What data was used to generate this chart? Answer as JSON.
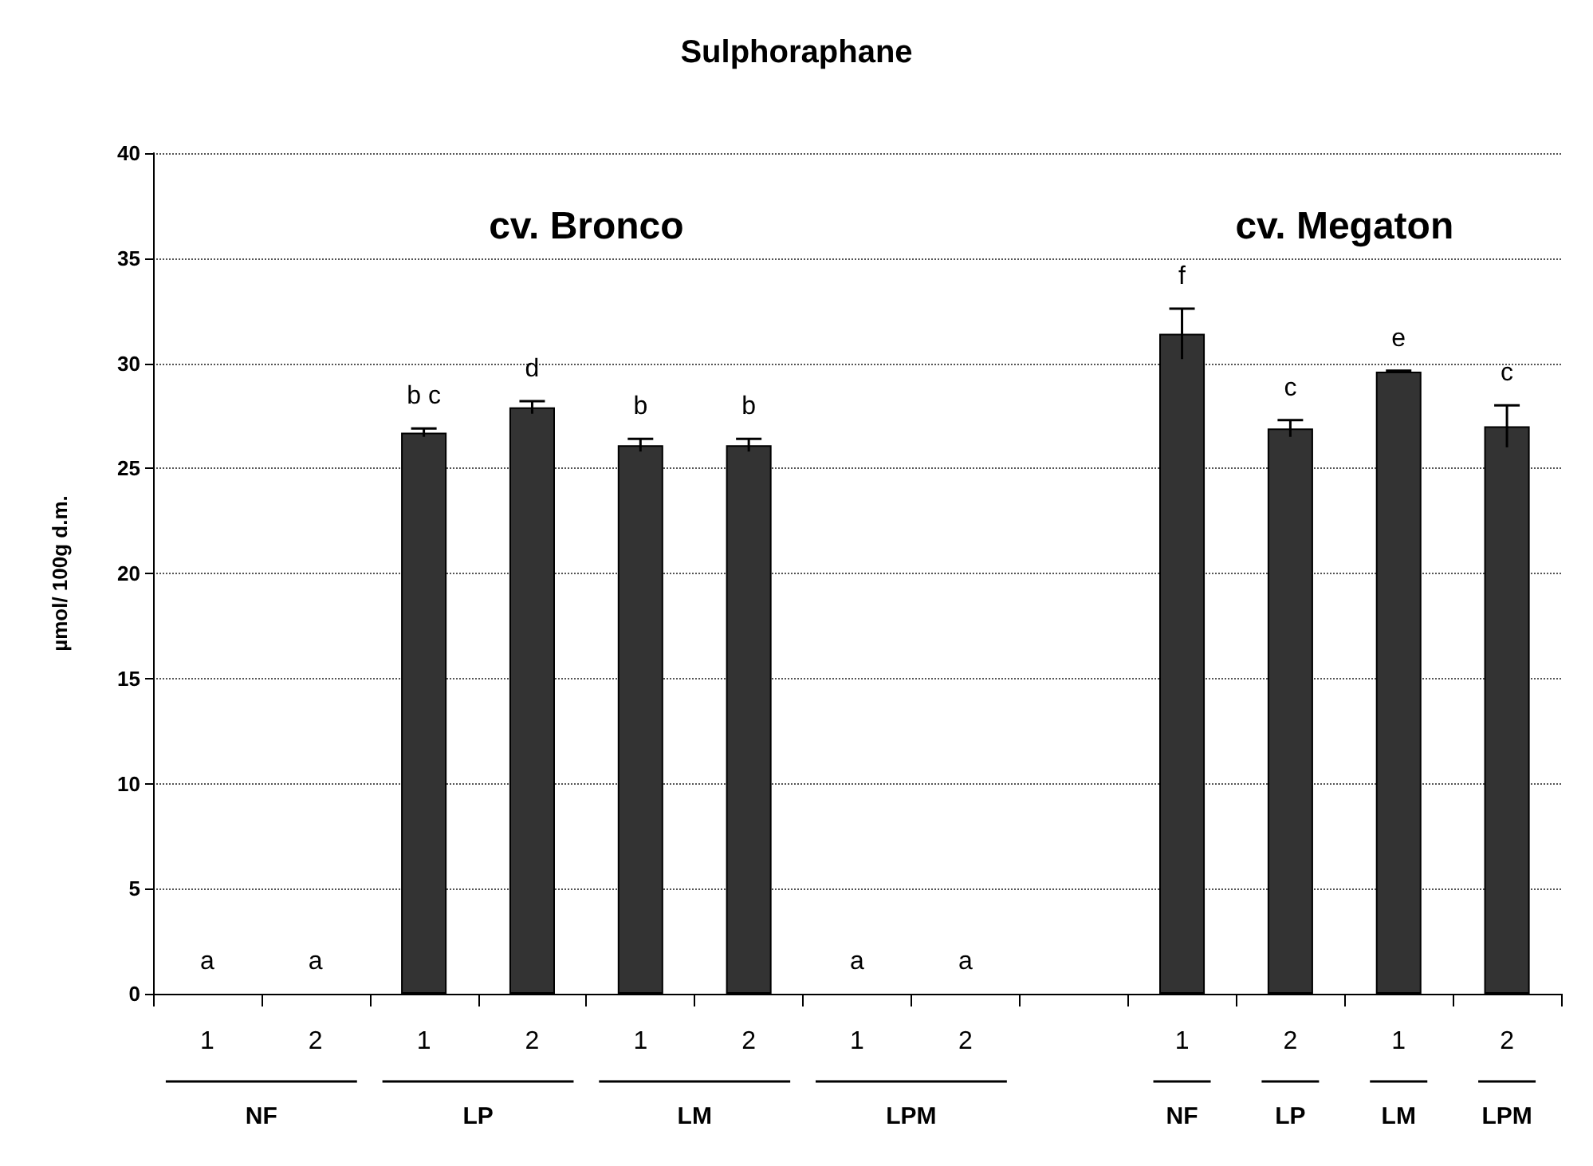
{
  "chart_data": {
    "type": "bar",
    "title": "Sulphoraphane",
    "ylabel": "µmol/ 100g d.m.",
    "categories": [
      "1",
      "2",
      "1",
      "2",
      "1",
      "2",
      "1",
      "2",
      null,
      "1",
      "2",
      "1",
      "2"
    ],
    "values": [
      0,
      0,
      26.7,
      27.9,
      26.1,
      26.1,
      0,
      0,
      null,
      31.4,
      26.9,
      29.6,
      27.0
    ],
    "errors": [
      null,
      null,
      0.2,
      0.3,
      0.3,
      0.3,
      null,
      null,
      null,
      1.2,
      0.4,
      0.05,
      1.0
    ],
    "value_labels": [
      "a",
      "a",
      "b c",
      "d",
      "b",
      "b",
      "a",
      "a",
      null,
      "f",
      "c",
      "e",
      "c"
    ],
    "color": "#333333",
    "ylim": [
      0,
      40
    ],
    "yticks": [
      0,
      5,
      10,
      15,
      20,
      25,
      30,
      35,
      40
    ],
    "grid": "y",
    "annotations": [
      "cv. Bronco",
      "cv. Megaton",
      "NF",
      "LP",
      "LM",
      "LPM",
      "NF",
      "LP",
      "LM",
      "LPM"
    ]
  }
}
